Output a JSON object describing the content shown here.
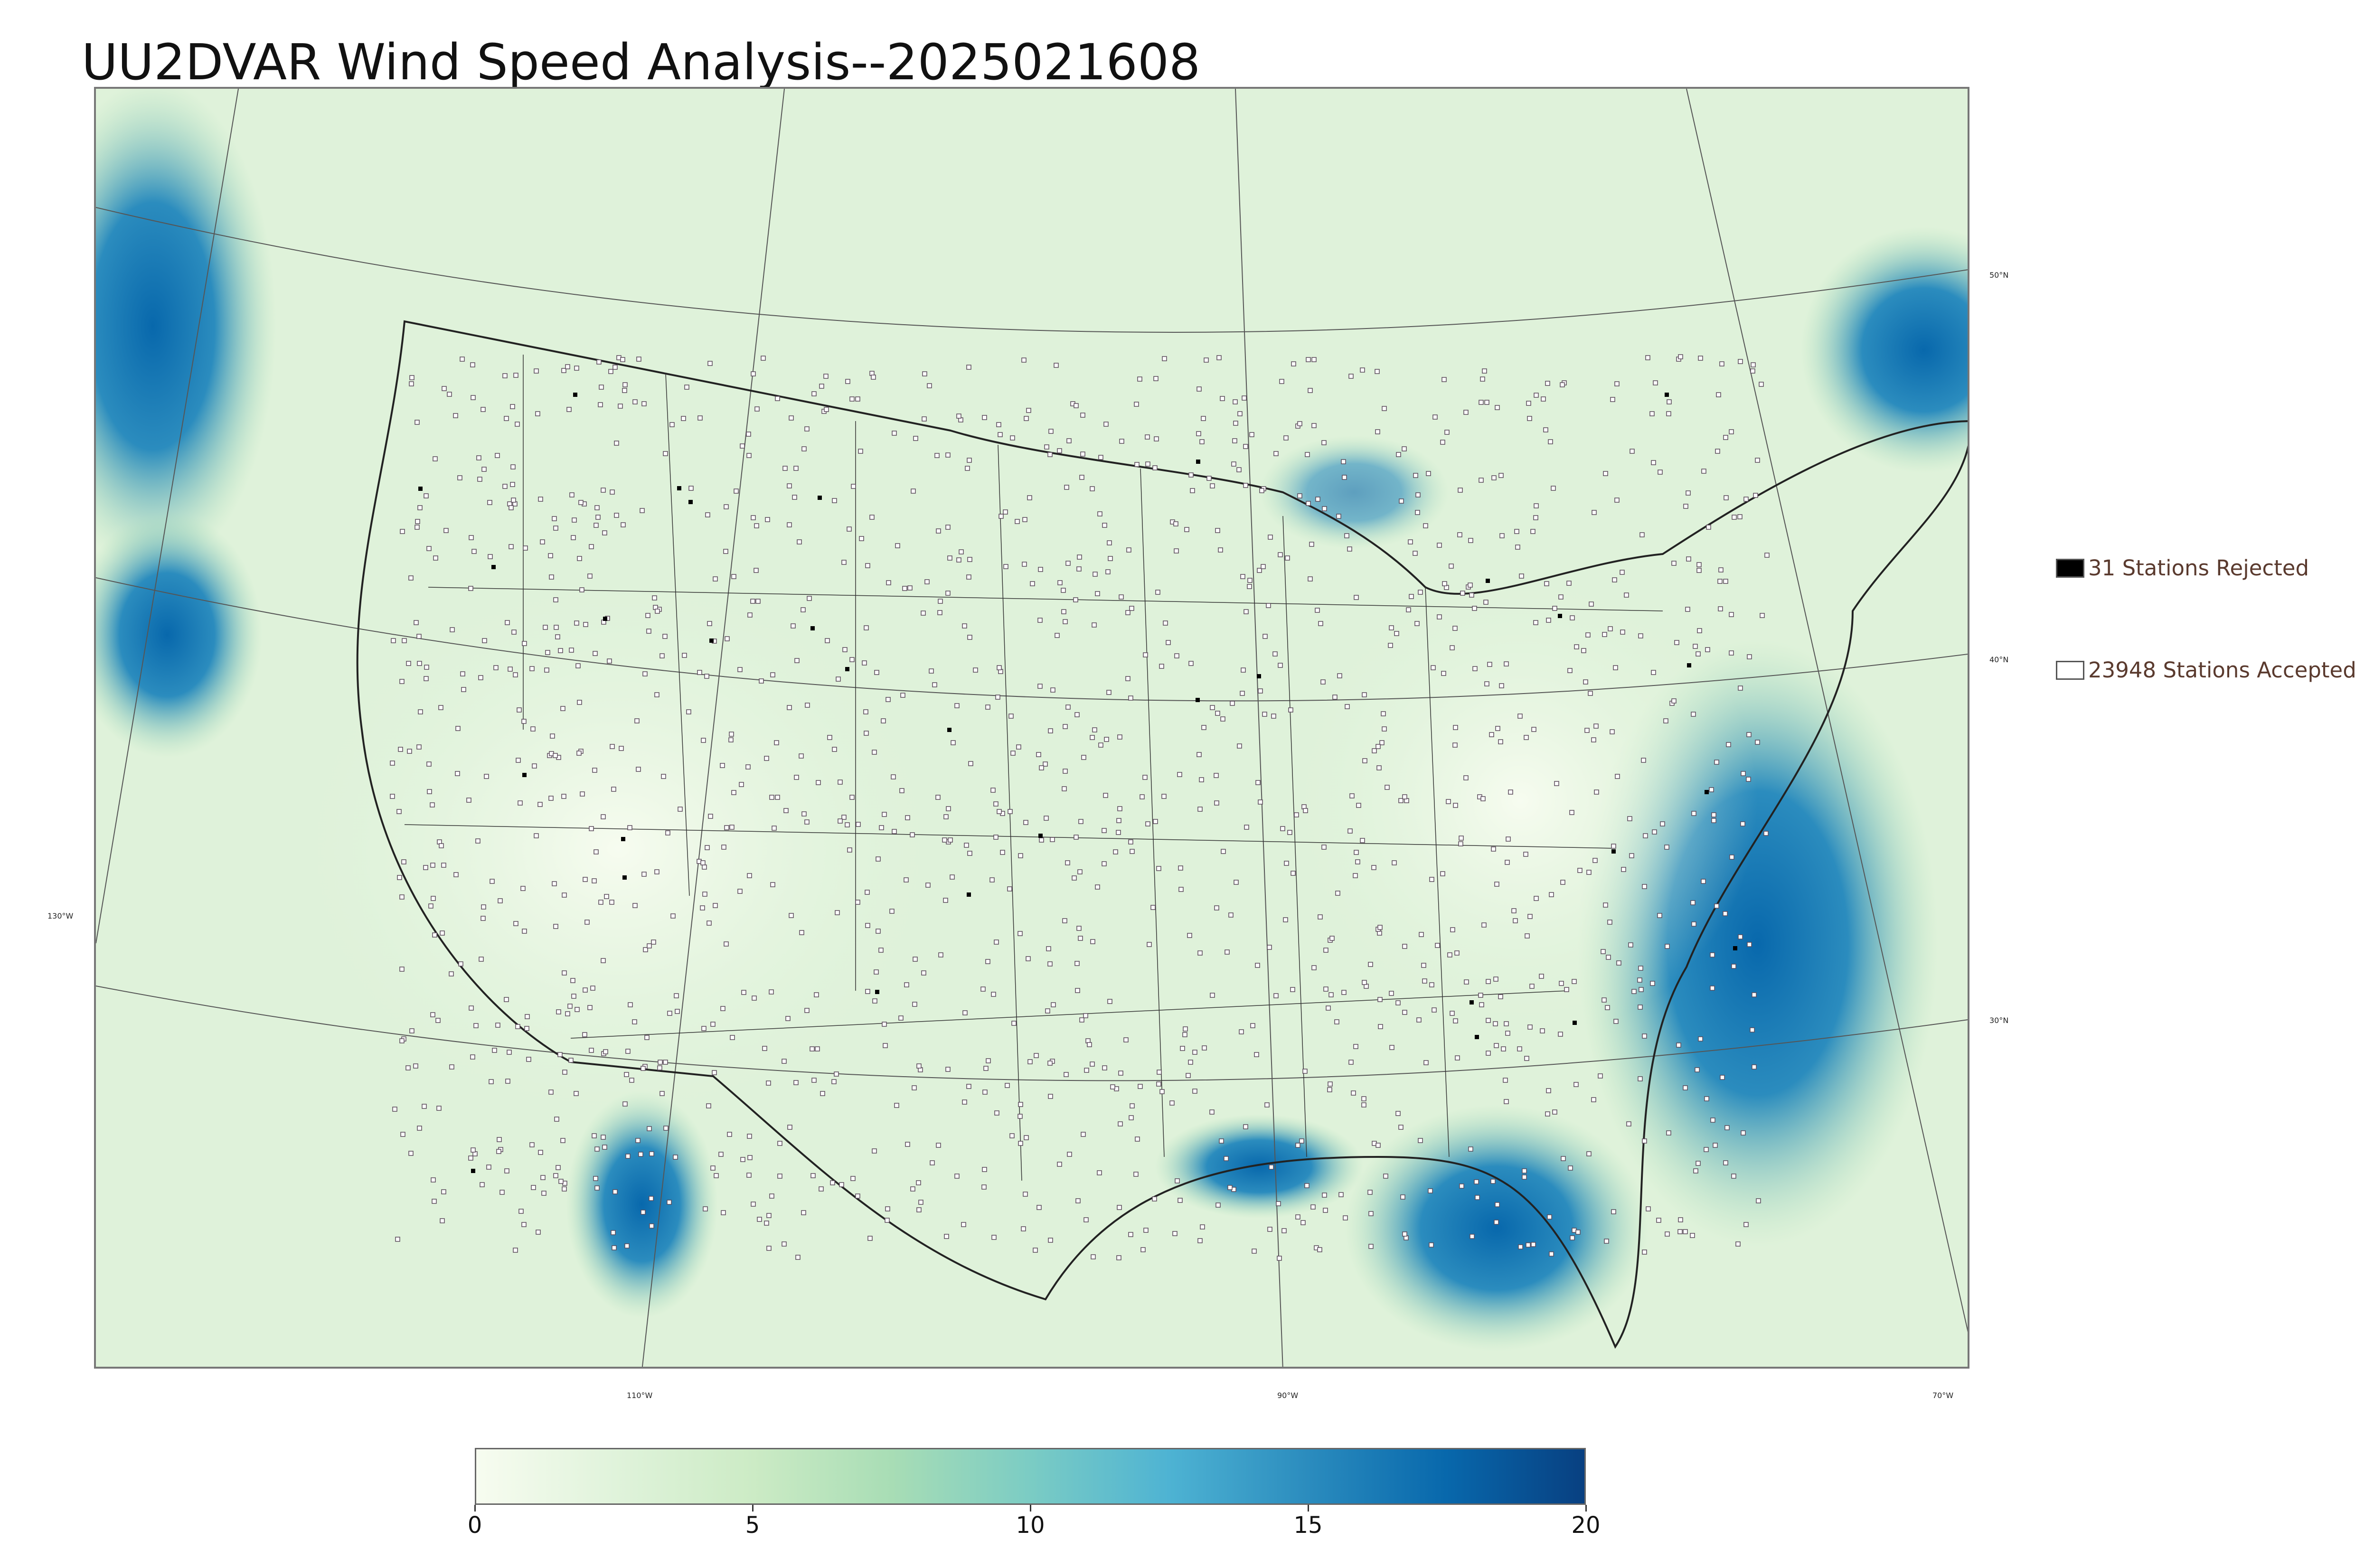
{
  "title": "UU2DVAR Wind Speed Analysis--2025021608",
  "map": {
    "lat_labels": [
      "50°N",
      "40°N",
      "30°N"
    ],
    "lon_labels": [
      "130°W",
      "110°W",
      "90°W",
      "70°W"
    ]
  },
  "legend": {
    "rejected_label": "31 Stations Rejected",
    "accepted_label": "23948 Stations Accepted",
    "rejected_color": "#000000",
    "accepted_color": "#ffffff"
  },
  "colorbar": {
    "min": 0,
    "max": 20,
    "ticks": [
      "0",
      "5",
      "10",
      "15",
      "20"
    ],
    "colors": [
      "#f7fcf0",
      "#e0f3db",
      "#ccebc5",
      "#a8ddb5",
      "#7bccc4",
      "#4eb3d3",
      "#2b8cbe",
      "#0868ac",
      "#084081"
    ]
  }
}
